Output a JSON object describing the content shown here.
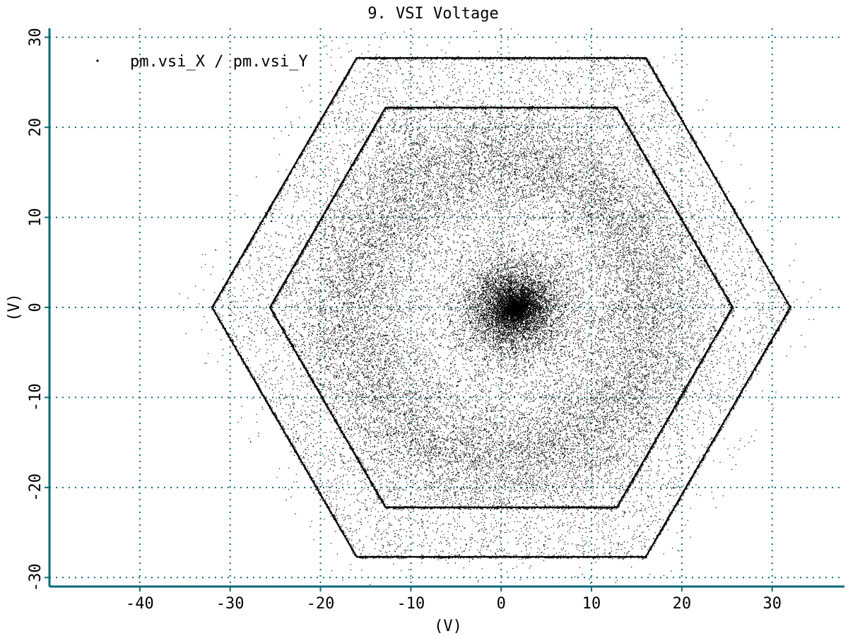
{
  "chart_data": {
    "type": "scatter",
    "title": "9. VSI Voltage",
    "xlabel": "(V)",
    "ylabel": "(V)",
    "xlim": [
      -50,
      38
    ],
    "ylim": [
      -31,
      31
    ],
    "xticks": [
      -40,
      -30,
      -20,
      -10,
      0,
      10,
      20,
      30
    ],
    "yticks": [
      -30,
      -20,
      -10,
      0,
      10,
      20,
      30
    ],
    "x_tick_labels": [
      "-40",
      "-30",
      "-20",
      "-10",
      "0",
      "10",
      "20",
      "30"
    ],
    "y_tick_labels": [
      "-30",
      "-20",
      "-10",
      "0",
      "10",
      "20",
      "30"
    ],
    "grid": true,
    "legend": {
      "placement": "top-left",
      "entries": [
        "pm.vsi_X / pm.vsi_Y"
      ]
    },
    "series": [
      {
        "name": "pm.vsi_X / pm.vsi_Y",
        "color": "#000000",
        "marker": "dot",
        "features": {
          "outer_hexagon_vertices": [
            [
              32,
              0
            ],
            [
              16,
              27.7
            ],
            [
              -16,
              27.7
            ],
            [
              -32,
              0
            ],
            [
              -16,
              -27.7
            ],
            [
              16,
              -27.7
            ]
          ],
          "inner_hexagon_vertices": [
            [
              25.6,
              0
            ],
            [
              12.8,
              22.2
            ],
            [
              -12.8,
              22.2
            ],
            [
              -25.6,
              0
            ],
            [
              -12.8,
              -22.2
            ],
            [
              12.8,
              -22.2
            ]
          ],
          "dense_core_center": [
            1.5,
            0
          ],
          "dense_core_radius": 6,
          "dense_ring_radius": 17,
          "scatter_extent_radius": 36
        }
      }
    ]
  }
}
